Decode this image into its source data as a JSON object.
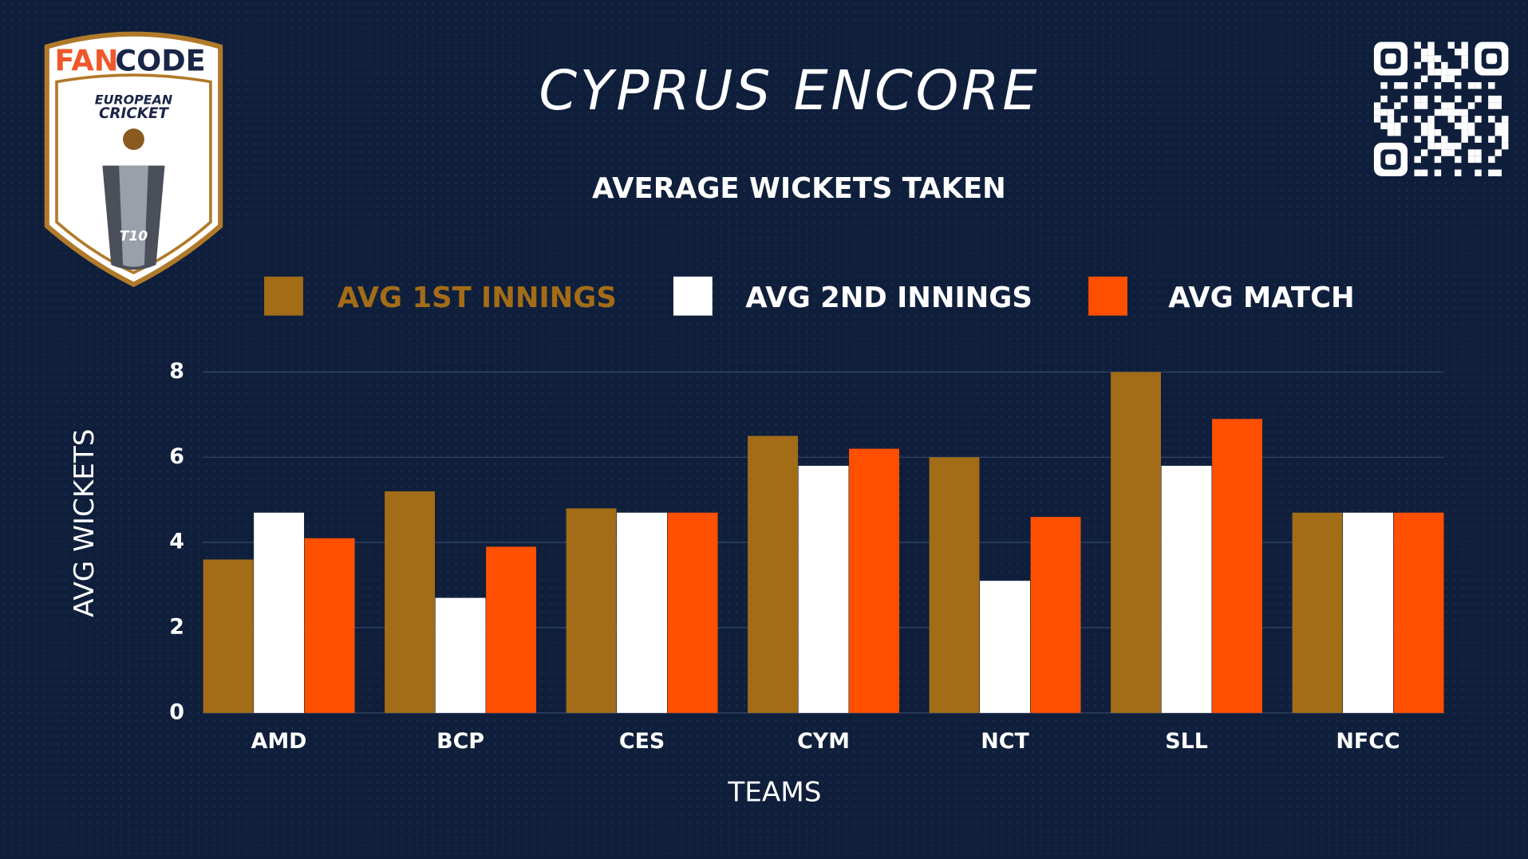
{
  "chart_data": {
    "type": "bar",
    "title": "CYPRUS ENCORE",
    "subtitle": "AVERAGE WICKETS TAKEN",
    "x_label": "TEAMS",
    "y_label": "AVG WICKETS",
    "categories": [
      "AMD",
      "BCP",
      "CES",
      "CYM",
      "NCT",
      "SLL",
      "NFCC"
    ],
    "series": [
      {
        "name": "AVG 1ST INNINGS",
        "color": "#a36c17",
        "values": [
          3.6,
          5.2,
          4.8,
          6.5,
          6.0,
          8.0,
          4.7
        ]
      },
      {
        "name": "AVG 2ND INNINGS",
        "color": "#ffffff",
        "values": [
          4.7,
          2.7,
          4.7,
          5.8,
          3.1,
          5.8,
          4.7
        ]
      },
      {
        "name": "AVG MATCH",
        "color": "#ff5000",
        "values": [
          4.1,
          3.9,
          4.7,
          6.2,
          4.6,
          6.9,
          4.7
        ]
      }
    ],
    "ylim": [
      0,
      8
    ],
    "yticks": [
      0,
      2,
      4,
      6,
      8
    ],
    "grid": true,
    "legend": "top"
  },
  "logo": {
    "brand_1": "FAN",
    "brand_2": "CODE",
    "line_1": "EUROPEAN",
    "line_2": "CRICKET",
    "badge": "T10"
  }
}
